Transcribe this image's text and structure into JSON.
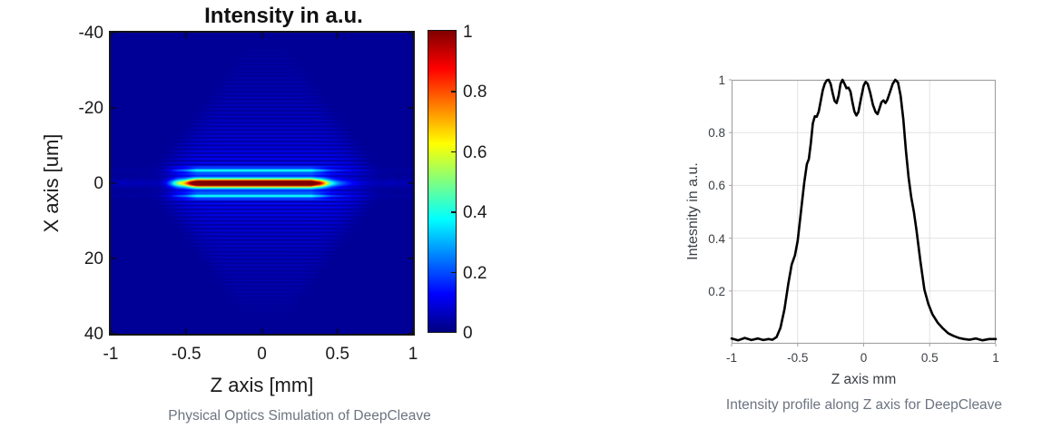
{
  "figure_left": {
    "title": "Intensity in a.u.",
    "xlabel": "Z axis [mm]",
    "ylabel": "X axis [um]",
    "caption": "Physical Optics Simulation of DeepCleave",
    "xtick_labels": [
      "-1",
      "-0.5",
      "0",
      "0.5",
      "1"
    ],
    "ytick_labels": [
      "-40",
      "-20",
      "0",
      "20",
      "40"
    ],
    "colorbar_tick_labels": [
      "0",
      "0.2",
      "0.4",
      "0.6",
      "0.8",
      "1"
    ]
  },
  "figure_right": {
    "xlabel": "Z axis mm",
    "ylabel": "Intesnity in a.u.",
    "caption": "Intensity profile along Z axis for DeepCleave",
    "xtick_labels": [
      "-1",
      "-0.5",
      "0",
      "0.5",
      "1"
    ],
    "ytick_labels": [
      "0.2",
      "0.4",
      "0.6",
      "0.8",
      "1"
    ]
  },
  "colors": {
    "jet_stops": [
      "#000080",
      "#0000ff",
      "#00ffff",
      "#ffff00",
      "#ff0000",
      "#800000"
    ],
    "curve": "#000000",
    "grid": "#e2e2e2",
    "axis_box": "#a3a3a3",
    "caption_text": "#6b7480",
    "left_text": "#1a1a1a",
    "right_text": "#3a3f44"
  },
  "chart_data": [
    {
      "type": "heatmap",
      "title": "Intensity in a.u.",
      "xlabel": "Z axis [mm]",
      "ylabel": "X axis [um]",
      "xlim": [
        -1,
        1
      ],
      "ylim_top_to_bottom": [
        -40,
        40
      ],
      "clim": [
        0,
        1
      ],
      "xticks": [
        -1,
        -0.5,
        0,
        0.5,
        1
      ],
      "yticks": [
        -40,
        -20,
        0,
        20,
        40
      ],
      "colorbar_ticks": [
        0,
        0.2,
        0.4,
        0.6,
        0.8,
        1
      ],
      "colormap": "jet",
      "description": "Horizontal focal line at X=0 um spanning Z about -0.65 to +0.55 mm (dark-red core about -0.48 to +0.42, cyan tips), with faint horizontal interference fringes forming a bowtie envelope that narrows with |X|; Z intensity profile of the line equals chart_data[1].",
      "model": {
        "background_level": 0.022,
        "core_gain": 1.45,
        "core_sigma_um": 0.95,
        "halo_amp": 0.32,
        "halo_sigma_um": 1.9,
        "sidelobe_amp": 0.26,
        "sidelobe_center_um": 3.4,
        "sidelobe_sigma_um": 0.75,
        "fringe_amp": 0.16,
        "fringe_amp_floor": 0.02,
        "fringe_decay_um": 11,
        "fringe_period_um": 1.02,
        "fringe_suppress_core_um": 2.5,
        "fringe_halfwidth_z0": 0.72,
        "fringe_halfwidth_slope_per_um": 0.016,
        "fringe_halfwidth_min": 0.04,
        "fringe_cutoff_um": 38,
        "fringe_center_z": 0.03
      }
    },
    {
      "type": "line",
      "title": "",
      "xlabel": "Z axis mm",
      "ylabel": "Intesnity in a.u.",
      "xlim": [
        -1,
        1
      ],
      "ylim": [
        0,
        1
      ],
      "xticks": [
        -1,
        -0.5,
        0,
        0.5,
        1
      ],
      "yticks": [
        0.2,
        0.4,
        0.6,
        0.8,
        1
      ],
      "grid": true,
      "line_width": 2.6,
      "x": [
        -1.0,
        -0.95,
        -0.9,
        -0.85,
        -0.8,
        -0.76,
        -0.72,
        -0.69,
        -0.66,
        -0.63,
        -0.6,
        -0.57,
        -0.545,
        -0.52,
        -0.5,
        -0.475,
        -0.45,
        -0.43,
        -0.415,
        -0.4,
        -0.385,
        -0.37,
        -0.355,
        -0.34,
        -0.325,
        -0.31,
        -0.295,
        -0.28,
        -0.265,
        -0.25,
        -0.235,
        -0.22,
        -0.205,
        -0.19,
        -0.175,
        -0.16,
        -0.145,
        -0.13,
        -0.115,
        -0.1,
        -0.085,
        -0.07,
        -0.055,
        -0.04,
        -0.02,
        0.0,
        0.015,
        0.03,
        0.05,
        0.07,
        0.09,
        0.105,
        0.12,
        0.135,
        0.15,
        0.165,
        0.18,
        0.2,
        0.22,
        0.24,
        0.26,
        0.28,
        0.3,
        0.32,
        0.34,
        0.36,
        0.38,
        0.4,
        0.43,
        0.46,
        0.49,
        0.52,
        0.56,
        0.6,
        0.64,
        0.68,
        0.72,
        0.76,
        0.8,
        0.85,
        0.9,
        0.95,
        1.0
      ],
      "y": [
        0.02,
        0.013,
        0.022,
        0.014,
        0.02,
        0.014,
        0.018,
        0.015,
        0.025,
        0.06,
        0.13,
        0.23,
        0.3,
        0.335,
        0.39,
        0.5,
        0.61,
        0.68,
        0.7,
        0.76,
        0.835,
        0.862,
        0.86,
        0.88,
        0.92,
        0.96,
        0.985,
        0.998,
        1.0,
        0.985,
        0.95,
        0.92,
        0.912,
        0.94,
        0.985,
        1.0,
        0.985,
        0.968,
        0.97,
        0.955,
        0.915,
        0.88,
        0.865,
        0.878,
        0.93,
        0.978,
        0.992,
        0.985,
        0.95,
        0.905,
        0.878,
        0.87,
        0.892,
        0.915,
        0.922,
        0.912,
        0.925,
        0.955,
        0.985,
        1.0,
        0.99,
        0.94,
        0.85,
        0.73,
        0.63,
        0.555,
        0.5,
        0.43,
        0.31,
        0.205,
        0.15,
        0.112,
        0.08,
        0.058,
        0.04,
        0.03,
        0.022,
        0.018,
        0.015,
        0.02,
        0.013,
        0.018,
        0.018
      ]
    }
  ]
}
